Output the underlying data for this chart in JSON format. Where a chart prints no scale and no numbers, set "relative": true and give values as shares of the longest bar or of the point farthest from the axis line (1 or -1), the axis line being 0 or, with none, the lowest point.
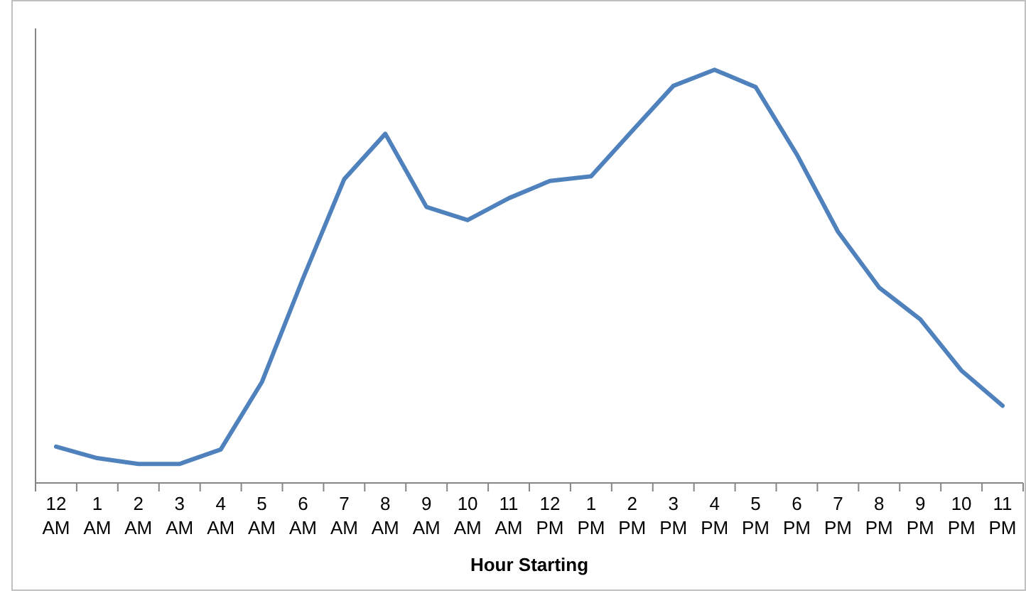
{
  "chart_data": {
    "type": "line",
    "relative": true,
    "xlabel": "Hour Starting",
    "categories": [
      "12 AM",
      "1 AM",
      "2 AM",
      "3 AM",
      "4 AM",
      "5 AM",
      "6 AM",
      "7 AM",
      "8 AM",
      "9 AM",
      "10 AM",
      "11 AM",
      "12 PM",
      "1 PM",
      "2 PM",
      "3 PM",
      "4 PM",
      "5 PM",
      "6 PM",
      "7 PM",
      "8 PM",
      "9 PM",
      "10 PM",
      "11 PM"
    ],
    "series": [
      {
        "color": "#4f81bd",
        "values": [
          0.088,
          0.06,
          0.046,
          0.046,
          0.081,
          0.244,
          0.495,
          0.735,
          0.845,
          0.668,
          0.636,
          0.689,
          0.731,
          0.742,
          0.852,
          0.961,
          1,
          0.958,
          0.795,
          0.608,
          0.473,
          0.396,
          0.272,
          0.187
        ]
      }
    ],
    "line_style": "solid"
  }
}
